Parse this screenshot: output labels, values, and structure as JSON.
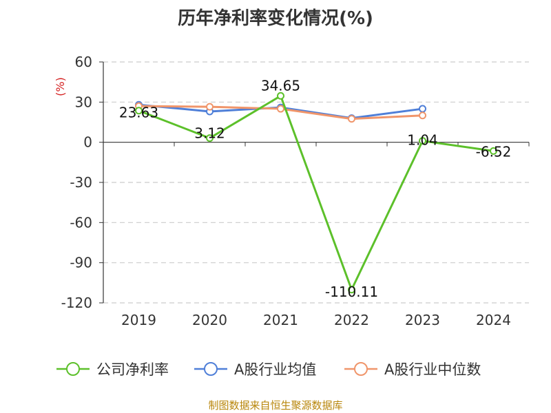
{
  "chart_data": {
    "type": "line",
    "title": "历年净利率变化情况(%)",
    "ylabel": "(%)",
    "xlabel": "",
    "categories": [
      "2019",
      "2020",
      "2021",
      "2022",
      "2023",
      "2024"
    ],
    "ylim": [
      -120,
      60
    ],
    "yticks": [
      60,
      30,
      0,
      -30,
      -60,
      -90,
      -120
    ],
    "grid": true,
    "legend_position": "bottom",
    "series": [
      {
        "name": "公司净利率",
        "color": "#5cc02a",
        "values": [
          23.63,
          3.12,
          34.65,
          -110.11,
          1.04,
          -6.52
        ],
        "labels": [
          "23.63",
          "3.12",
          "34.65",
          "-110.11",
          "1.04",
          "-6.52"
        ]
      },
      {
        "name": "A股行业均值",
        "color": "#4f7fd8",
        "values": [
          28,
          23,
          26,
          18,
          25,
          null
        ]
      },
      {
        "name": "A股行业中位数",
        "color": "#f0956a",
        "values": [
          27,
          26.5,
          25,
          17.5,
          20,
          null
        ]
      }
    ]
  },
  "source_note": "制图数据来自恒生聚源数据库"
}
